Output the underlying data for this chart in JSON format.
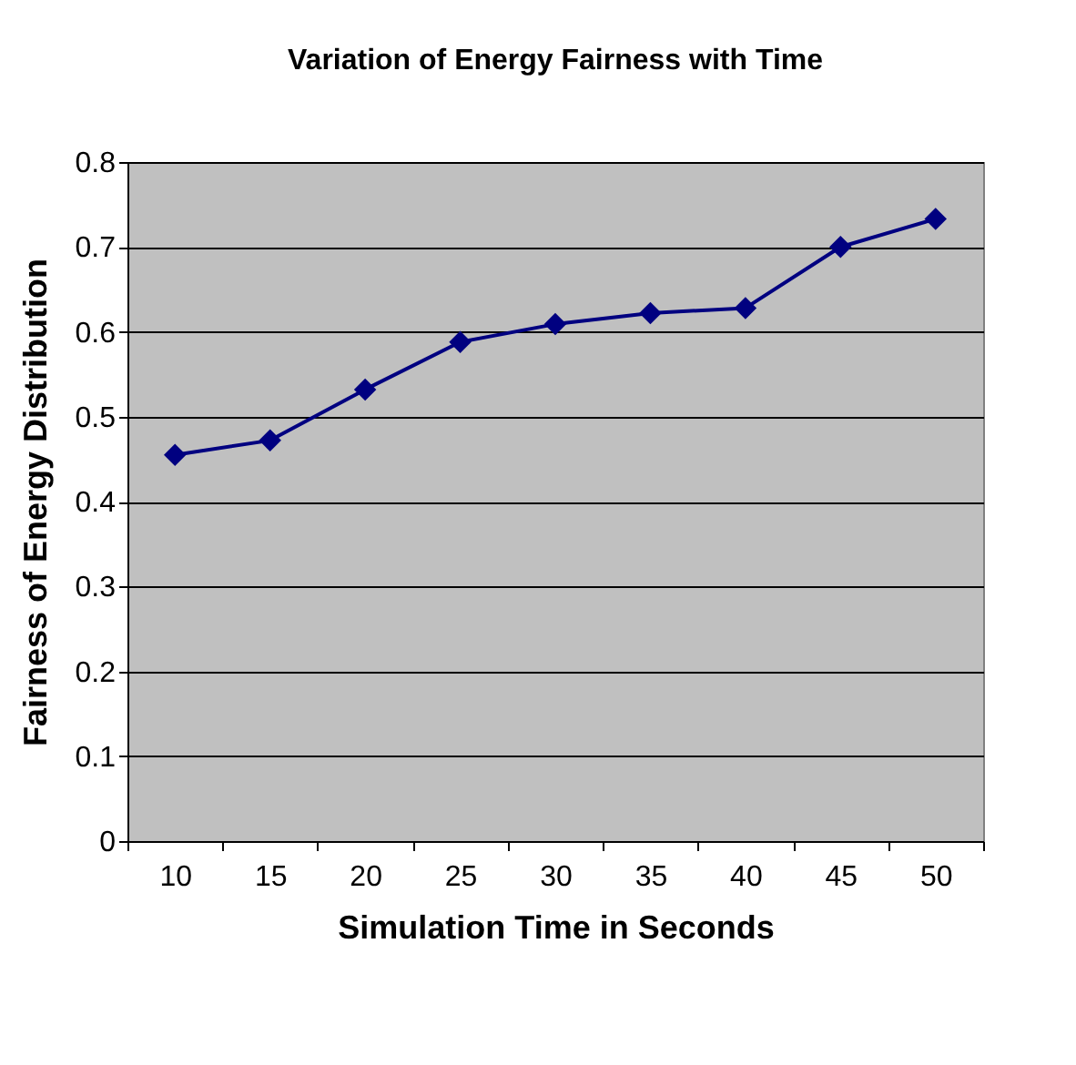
{
  "chart_data": {
    "type": "line",
    "title": "Variation of Energy Fairness with Time",
    "xlabel": "Simulation Time in  Seconds",
    "ylabel": "Fairness of Energy Distribution",
    "categories": [
      "10",
      "15",
      "20",
      "25",
      "30",
      "35",
      "40",
      "45",
      "50"
    ],
    "series": [
      {
        "color": "#000080",
        "values": [
          0.455,
          0.472,
          0.532,
          0.588,
          0.609,
          0.622,
          0.628,
          0.7,
          0.733
        ]
      }
    ],
    "ylim": [
      0,
      0.8
    ],
    "yticks": [
      0,
      0.1,
      0.2,
      0.3,
      0.4,
      0.5,
      0.6,
      0.7,
      0.8
    ],
    "grid": "y",
    "marker": "diamond",
    "line_style": "solid"
  }
}
